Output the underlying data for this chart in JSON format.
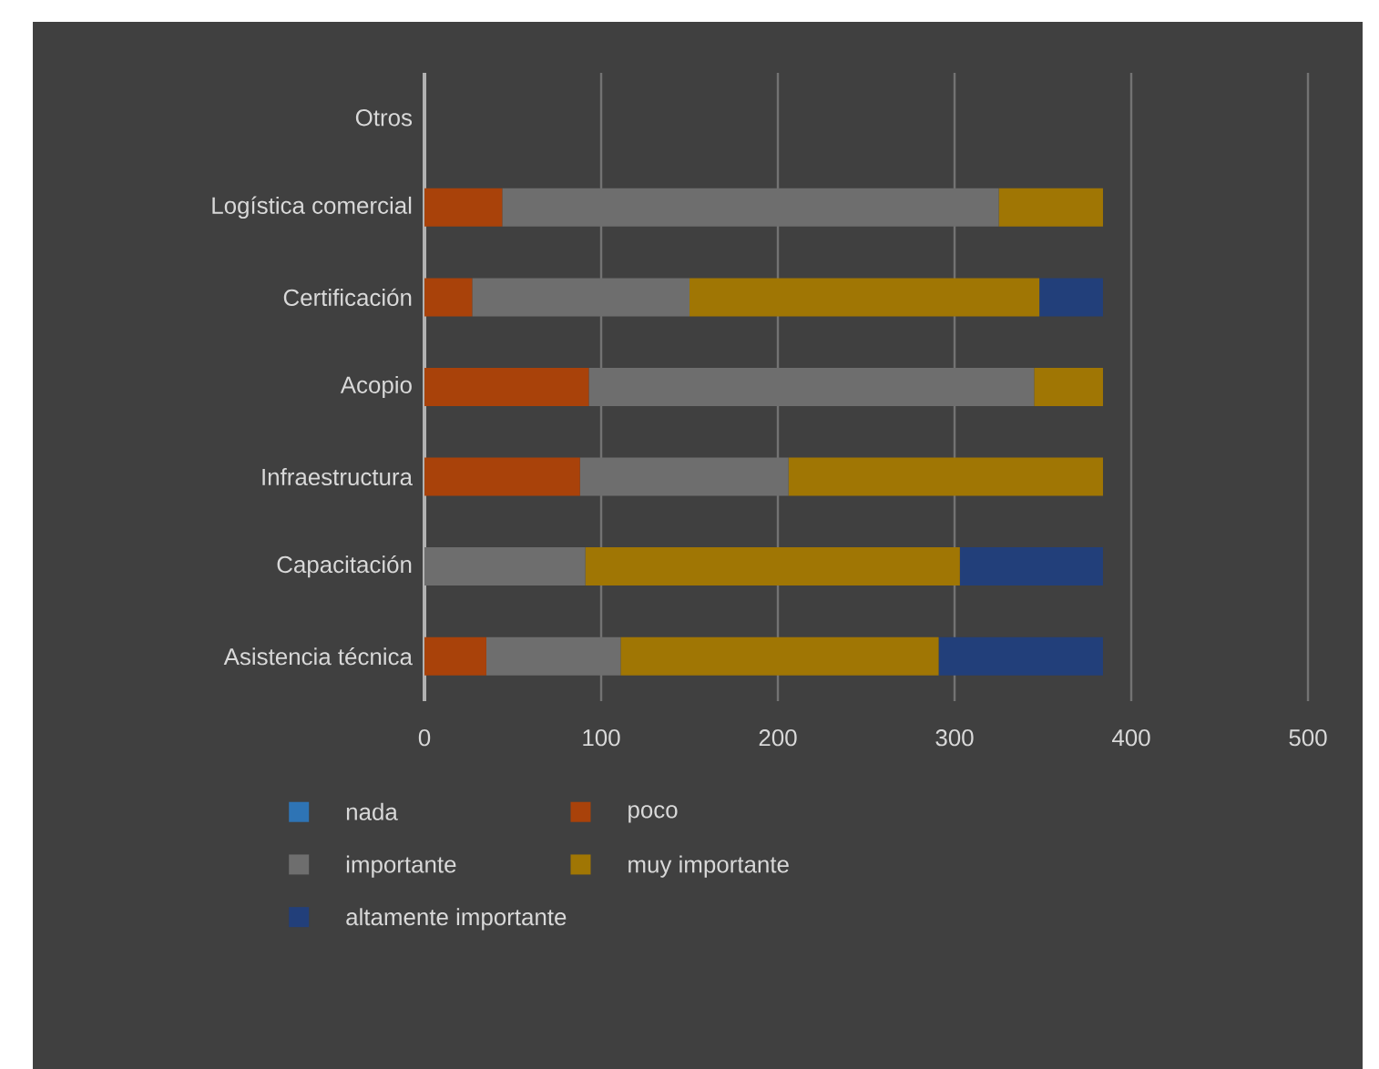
{
  "chart_data": {
    "type": "bar",
    "orientation": "horizontal",
    "stacked": true,
    "categories": [
      "Otros",
      "Logística comercial",
      "Certificación",
      "Acopio",
      "Infraestructura",
      "Capacitación",
      "Asistencia técnica"
    ],
    "series": [
      {
        "name": "nada",
        "color": "#2e74b5",
        "values": [
          0,
          0,
          0,
          0,
          0,
          0,
          0
        ]
      },
      {
        "name": "poco",
        "color": "#a9420a",
        "values": [
          0,
          44,
          27,
          93,
          88,
          0,
          35
        ]
      },
      {
        "name": "importante",
        "color": "#6e6e6e",
        "values": [
          0,
          281,
          123,
          252,
          118,
          91,
          76
        ]
      },
      {
        "name": "muy importante",
        "color": "#a07604",
        "values": [
          0,
          59,
          198,
          39,
          178,
          212,
          180
        ]
      },
      {
        "name": "altamente importante",
        "color": "#223f7a",
        "values": [
          0,
          0,
          36,
          0,
          0,
          81,
          93
        ]
      }
    ],
    "xlim": [
      0,
      500
    ],
    "xticks": [
      0,
      100,
      200,
      300,
      400,
      500
    ],
    "grid": "x",
    "legend": "bottom"
  }
}
